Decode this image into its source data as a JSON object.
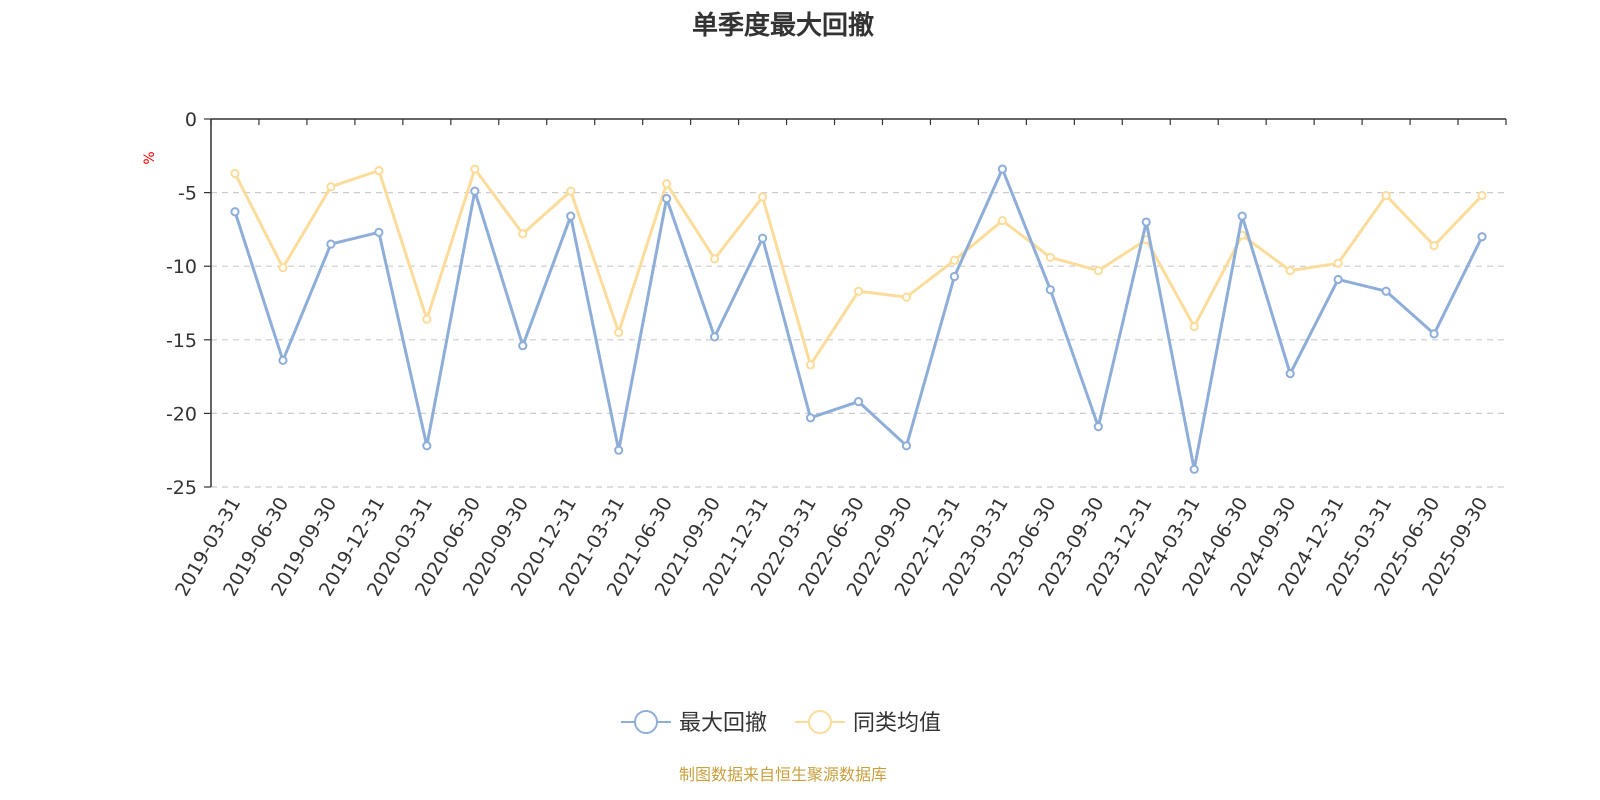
{
  "chart_data": {
    "type": "line",
    "title": "单季度最大回撤",
    "ylabel": "%",
    "xlabel": "",
    "ylim": [
      -25,
      0
    ],
    "yticks": [
      0,
      -5,
      -10,
      -15,
      -20,
      -25
    ],
    "grid": true,
    "legend_position": "bottom-center",
    "categories": [
      "2019-03-31",
      "2019-06-30",
      "2019-09-30",
      "2019-12-31",
      "2020-03-31",
      "2020-06-30",
      "2020-09-30",
      "2020-12-31",
      "2021-03-31",
      "2021-06-30",
      "2021-09-30",
      "2021-12-31",
      "2022-03-31",
      "2022-06-30",
      "2022-09-30",
      "2022-12-31",
      "2023-03-31",
      "2023-06-30",
      "2023-09-30",
      "2023-12-31",
      "2024-03-31",
      "2024-06-30",
      "2024-09-30",
      "2024-12-31",
      "2025-03-31",
      "2025-06-30",
      "2025-09-30"
    ],
    "series": [
      {
        "name": "最大回撤",
        "color": "#8eaed9",
        "values": [
          -6.3,
          -16.4,
          -8.5,
          -7.7,
          -22.2,
          -4.9,
          -15.4,
          -6.6,
          -22.5,
          -5.4,
          -14.8,
          -8.1,
          -20.3,
          -19.2,
          -22.2,
          -10.7,
          -3.4,
          -11.6,
          -20.9,
          -7.0,
          -23.8,
          -6.6,
          -17.3,
          -10.9,
          -11.7,
          -14.6,
          -8.0
        ]
      },
      {
        "name": "同类均值",
        "color": "#fbdc9b",
        "values": [
          -3.7,
          -10.1,
          -4.6,
          -3.5,
          -13.6,
          -3.4,
          -7.8,
          -4.9,
          -14.5,
          -4.4,
          -9.5,
          -5.3,
          -16.7,
          -11.7,
          -12.1,
          -9.6,
          -6.9,
          -9.4,
          -10.3,
          -8.2,
          -14.1,
          -7.9,
          -10.3,
          -9.8,
          -5.2,
          -8.6,
          -5.2
        ]
      }
    ]
  },
  "footer": {
    "source": "制图数据来自恒生聚源数据库"
  }
}
